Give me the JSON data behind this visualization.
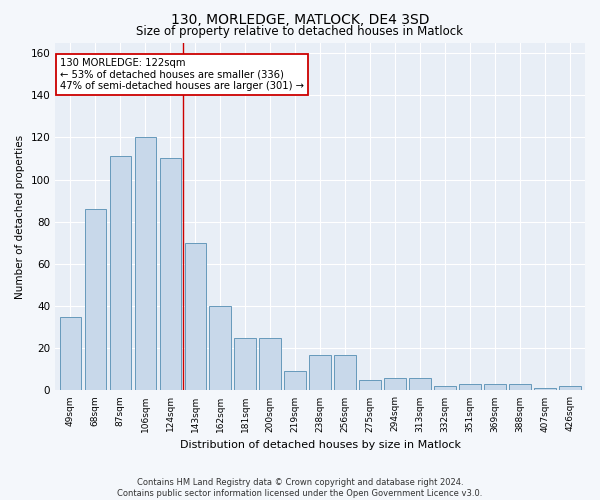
{
  "title": "130, MORLEDGE, MATLOCK, DE4 3SD",
  "subtitle": "Size of property relative to detached houses in Matlock",
  "xlabel": "Distribution of detached houses by size in Matlock",
  "ylabel": "Number of detached properties",
  "bar_color": "#c8d8ea",
  "bar_edge_color": "#6699bb",
  "background_color": "#e8eef6",
  "fig_background_color": "#f4f7fb",
  "grid_color": "#ffffff",
  "categories": [
    "49sqm",
    "68sqm",
    "87sqm",
    "106sqm",
    "124sqm",
    "143sqm",
    "162sqm",
    "181sqm",
    "200sqm",
    "219sqm",
    "238sqm",
    "256sqm",
    "275sqm",
    "294sqm",
    "313sqm",
    "332sqm",
    "351sqm",
    "369sqm",
    "388sqm",
    "407sqm",
    "426sqm"
  ],
  "values": [
    35,
    86,
    111,
    120,
    110,
    70,
    40,
    25,
    25,
    9,
    17,
    17,
    5,
    6,
    6,
    2,
    3,
    3,
    3,
    1,
    2
  ],
  "ylim": [
    0,
    165
  ],
  "yticks": [
    0,
    20,
    40,
    60,
    80,
    100,
    120,
    140,
    160
  ],
  "vline_x": 4.5,
  "annotation_line1": "130 MORLEDGE: 122sqm",
  "annotation_line2": "← 53% of detached houses are smaller (336)",
  "annotation_line3": "47% of semi-detached houses are larger (301) →",
  "annotation_box_color": "#ffffff",
  "annotation_box_edge": "#cc0000",
  "vline_color": "#cc0000",
  "footer_line1": "Contains HM Land Registry data © Crown copyright and database right 2024.",
  "footer_line2": "Contains public sector information licensed under the Open Government Licence v3.0."
}
